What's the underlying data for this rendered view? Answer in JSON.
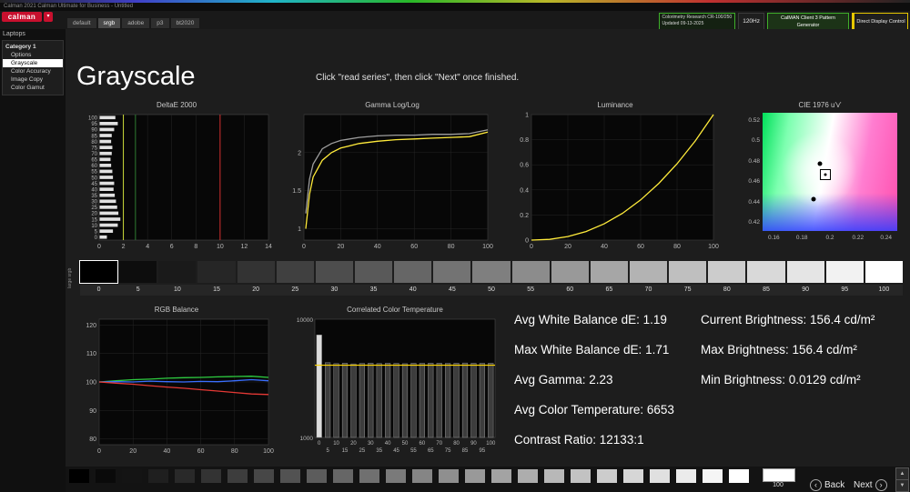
{
  "window": {
    "title": "Calman 2021 Calman Ultimate for Business - Untitled"
  },
  "brand": {
    "logo_text": "calman",
    "accent": "#c8102e"
  },
  "icons": {
    "caret_down": "▾",
    "chevron_left": "‹",
    "chevron_right": "›",
    "up": "▲",
    "down": "▼"
  },
  "tabs": {
    "items": [
      "default",
      "srgb",
      "adobe",
      "p3",
      "bt2020"
    ],
    "active": "srgb"
  },
  "topbar": {
    "meter": {
      "line1": "Colorimetry Research CR-100/250",
      "line2": "Updated 09-13-2025",
      "border": "#3fae2a"
    },
    "refresh": "120Hz",
    "generator": {
      "label": "CalMAN Client 3 Pattern Generator",
      "border": "#3fae2a"
    },
    "display_control": {
      "label": "Direct Display Control",
      "border": "#e6c700"
    }
  },
  "sidebar": {
    "header": "Laptops",
    "group": "Category 1",
    "items": [
      "Options",
      "Grayscale",
      "Color Accuracy",
      "Image Copy",
      "Color Gamut"
    ],
    "selected": "Grayscale"
  },
  "page": {
    "title": "Grayscale",
    "instruction": "Click \"read series\", then click \"Next\" once finished."
  },
  "strip": {
    "caption": "large srgb",
    "levels": [
      0,
      5,
      10,
      15,
      20,
      25,
      30,
      35,
      40,
      45,
      50,
      55,
      60,
      65,
      70,
      75,
      80,
      85,
      90,
      95,
      100
    ]
  },
  "stats": {
    "rows": [
      {
        "left": "Avg White Balance dE: 1.19",
        "right": "Current Brightness: 156.4  cd/m²"
      },
      {
        "left": "Max White Balance dE: 1.71",
        "right": "Max Brightness: 156.4 cd/m²"
      },
      {
        "left": "Avg Gamma: 2.23",
        "right": "Min Brightness: 0.0129 cd/m²"
      },
      {
        "left": "Avg Color Temperature: 6653",
        "right": ""
      },
      {
        "left": "Contrast Ratio: 12133:1",
        "right": ""
      }
    ]
  },
  "bottombar": {
    "levels": [
      0,
      4,
      8,
      12,
      16,
      20,
      24,
      28,
      32,
      36,
      40,
      44,
      48,
      52,
      56,
      60,
      64,
      68,
      72,
      76,
      80,
      84,
      88,
      92,
      96,
      100
    ],
    "current": {
      "level": 100,
      "label": "100"
    },
    "back": "Back",
    "next": "Next"
  },
  "chart_data": [
    {
      "id": "deltae",
      "type": "bar",
      "title": "DeltaE 2000",
      "orientation": "horizontal",
      "x_ticks": [
        0,
        2,
        4,
        6,
        8,
        10,
        12,
        14
      ],
      "x_max": 14,
      "y_categories": [
        100,
        95,
        90,
        85,
        80,
        75,
        70,
        65,
        60,
        55,
        50,
        45,
        40,
        35,
        30,
        25,
        20,
        15,
        10,
        5,
        0
      ],
      "values": [
        1.3,
        1.5,
        1.2,
        1.0,
        0.95,
        1.05,
        1.0,
        0.9,
        0.95,
        1.05,
        1.1,
        1.2,
        1.15,
        1.25,
        1.35,
        1.45,
        1.55,
        1.71,
        1.5,
        1.1,
        0.6
      ],
      "bar_color": "#e0e0e0",
      "ref_lines": [
        {
          "x": 2,
          "color": "#cddc39"
        },
        {
          "x": 3,
          "color": "#2e7d32"
        },
        {
          "x": 10,
          "color": "#d32f2f"
        }
      ]
    },
    {
      "id": "gamma",
      "type": "line",
      "title": "Gamma Log/Log",
      "x_ticks": [
        0,
        20,
        40,
        60,
        80,
        100
      ],
      "y_ticks": [
        1,
        1.5,
        2
      ],
      "x_range": [
        0,
        100
      ],
      "y_range": [
        0.85,
        2.5
      ],
      "series": [
        {
          "name": "target",
          "color": "#9e9e9e",
          "x": [
            1,
            3,
            5,
            10,
            15,
            20,
            30,
            40,
            50,
            60,
            70,
            80,
            90,
            100
          ],
          "y": [
            1.2,
            1.65,
            1.85,
            2.05,
            2.12,
            2.16,
            2.2,
            2.22,
            2.23,
            2.23,
            2.24,
            2.24,
            2.25,
            2.3
          ]
        },
        {
          "name": "measured",
          "color": "#ffeb3b",
          "x": [
            1,
            3,
            5,
            10,
            15,
            20,
            30,
            40,
            50,
            60,
            70,
            80,
            90,
            100
          ],
          "y": [
            1.0,
            1.45,
            1.68,
            1.9,
            2.0,
            2.06,
            2.12,
            2.15,
            2.17,
            2.18,
            2.19,
            2.2,
            2.21,
            2.27
          ]
        }
      ]
    },
    {
      "id": "luminance",
      "type": "line",
      "title": "Luminance",
      "x_ticks": [
        0,
        20,
        40,
        60,
        80,
        100
      ],
      "y_ticks": [
        0,
        0.2,
        0.4,
        0.6,
        0.8,
        1
      ],
      "x_range": [
        0,
        100
      ],
      "y_range": [
        0,
        1
      ],
      "series": [
        {
          "name": "measured",
          "color": "#ffeb3b",
          "x": [
            0,
            10,
            20,
            30,
            40,
            50,
            60,
            70,
            80,
            90,
            100
          ],
          "y": [
            0,
            0.006,
            0.028,
            0.068,
            0.13,
            0.213,
            0.32,
            0.452,
            0.608,
            0.79,
            1.0
          ]
        }
      ]
    },
    {
      "id": "cie",
      "type": "scatter",
      "title": "CIE 1976 u'v'",
      "x_ticks": [
        0.16,
        0.18,
        0.2,
        0.22,
        0.24
      ],
      "y_ticks": [
        0.42,
        0.44,
        0.46,
        0.48,
        0.5,
        0.52
      ],
      "x_range": [
        0.152,
        0.248
      ],
      "y_range": [
        0.412,
        0.528
      ],
      "points": [
        {
          "u": 0.193,
          "v": 0.478,
          "kind": "dot"
        },
        {
          "u": 0.188,
          "v": 0.443,
          "kind": "dot"
        },
        {
          "u": 0.197,
          "v": 0.467,
          "kind": "target"
        }
      ]
    },
    {
      "id": "rgb",
      "type": "line",
      "title": "RGB Balance",
      "x_ticks": [
        0,
        20,
        40,
        60,
        80,
        100
      ],
      "y_ticks": [
        80,
        90,
        100,
        110,
        120
      ],
      "x_range": [
        0,
        100
      ],
      "y_range": [
        78,
        122
      ],
      "series": [
        {
          "name": "green",
          "color": "#2ecc40",
          "x": [
            0,
            10,
            20,
            30,
            40,
            50,
            60,
            70,
            80,
            90,
            100
          ],
          "y": [
            100,
            100.4,
            100.8,
            101.0,
            101.3,
            101.5,
            101.6,
            101.8,
            101.9,
            102.0,
            101.6
          ]
        },
        {
          "name": "blue",
          "color": "#3a6fff",
          "x": [
            0,
            10,
            20,
            30,
            40,
            50,
            60,
            70,
            80,
            90,
            100
          ],
          "y": [
            100,
            100.1,
            100.0,
            100.3,
            100.1,
            100.0,
            100.2,
            100.1,
            100.4,
            100.8,
            100.4
          ]
        },
        {
          "name": "red",
          "color": "#e53935",
          "x": [
            0,
            10,
            20,
            30,
            40,
            50,
            60,
            70,
            80,
            90,
            100
          ],
          "y": [
            100,
            99.6,
            99.2,
            98.7,
            98.2,
            97.8,
            97.3,
            96.8,
            96.3,
            95.8,
            95.6
          ]
        }
      ]
    },
    {
      "id": "cct",
      "type": "bar",
      "title": "Correlated Color Temperature",
      "categories": [
        0,
        5,
        10,
        15,
        20,
        25,
        30,
        35,
        40,
        45,
        50,
        55,
        60,
        65,
        70,
        75,
        80,
        85,
        90,
        95,
        100
      ],
      "values": [
        8800,
        6690,
        6620,
        6655,
        6600,
        6635,
        6660,
        6625,
        6650,
        6640,
        6615,
        6650,
        6645,
        6660,
        6655,
        6640,
        6650,
        6665,
        6650,
        6645,
        6653
      ],
      "y_range": [
        1000,
        10000
      ],
      "y_ticks": [
        10000,
        1000
      ],
      "target_line": 6500,
      "target_color": "#ffd600",
      "bar_color": "#3d3d3d",
      "bar_border": "#909090",
      "first_bar_color": "#dcdcdc",
      "x_tick_rows": [
        [
          "0",
          "10",
          "20",
          "30",
          "40",
          "50",
          "60",
          "70",
          "80",
          "90",
          "100"
        ],
        [
          "5",
          "15",
          "25",
          "35",
          "45",
          "55",
          "65",
          "75",
          "85",
          "95"
        ]
      ]
    }
  ]
}
